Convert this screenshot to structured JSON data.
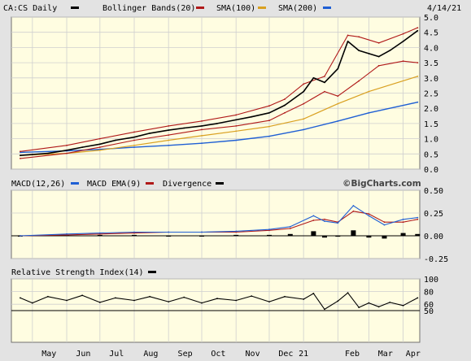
{
  "header": {
    "legend": [
      {
        "label": "CA:CS Daily",
        "color": "#000000"
      },
      {
        "label": "Bollinger Bands(20)",
        "color": "#b01919"
      },
      {
        "label": "SMA(100)",
        "color": "#d9a020"
      },
      {
        "label": "SMA(200)",
        "color": "#1f5fd4"
      }
    ],
    "date": "4/14/21"
  },
  "macd_header": {
    "legend": [
      {
        "label": "MACD(12,26)",
        "color": "#1f5fd4"
      },
      {
        "label": "MACD EMA(9)",
        "color": "#b01919"
      },
      {
        "label": "Divergence",
        "color": "#000000"
      }
    ],
    "watermark": "©BigCharts.com"
  },
  "rsi_header": {
    "legend": [
      {
        "label": "Relative Strength Index(14)",
        "color": "#000000"
      }
    ]
  },
  "colors": {
    "panel_bg": "#fffde1",
    "outer_bg": "#e3e3e3",
    "grid": "#cfcfcf",
    "price": "#000000",
    "bollinger": "#b01919",
    "sma100": "#d9a020",
    "sma200": "#1f5fd4",
    "macd": "#1f5fd4",
    "macd_ema": "#b01919"
  },
  "chart_data": [
    {
      "type": "line",
      "title": "CA:CS Daily",
      "ylim": [
        0,
        5
      ],
      "yticks": [
        "0.0",
        "0.5",
        "1.0",
        "1.5",
        "2.0",
        "2.5",
        "3.0",
        "3.5",
        "4.0",
        "4.5",
        "5.0"
      ],
      "series": [
        {
          "name": "CA:CS Daily",
          "x": [
            "2020-04-20",
            "2020-05-01",
            "2020-05-15",
            "2020-06-01",
            "2020-06-15",
            "2020-07-01",
            "2020-07-15",
            "2020-08-01",
            "2020-08-15",
            "2020-09-01",
            "2020-09-15",
            "2020-10-01",
            "2020-10-15",
            "2020-11-01",
            "2020-11-15",
            "2020-12-01",
            "2020-12-15",
            "2021-01-01",
            "2021-01-10",
            "2021-01-20",
            "2021-02-01",
            "2021-02-10",
            "2021-02-20",
            "2021-03-01",
            "2021-03-10",
            "2021-03-20",
            "2021-04-01",
            "2021-04-14"
          ],
          "values": [
            0.45,
            0.48,
            0.52,
            0.62,
            0.72,
            0.82,
            0.95,
            1.05,
            1.18,
            1.28,
            1.35,
            1.42,
            1.5,
            1.62,
            1.72,
            1.85,
            2.1,
            2.55,
            3.0,
            2.85,
            3.3,
            4.2,
            3.9,
            3.8,
            3.7,
            3.9,
            4.2,
            4.55
          ]
        },
        {
          "name": "Bollinger Upper",
          "x": [
            "2020-04-20",
            "2020-06-01",
            "2020-07-01",
            "2020-08-01",
            "2020-09-01",
            "2020-10-01",
            "2020-11-01",
            "2020-12-01",
            "2020-12-15",
            "2021-01-01",
            "2021-01-20",
            "2021-02-10",
            "2021-02-20",
            "2021-03-10",
            "2021-04-01",
            "2021-04-14"
          ],
          "values": [
            0.58,
            0.78,
            1.0,
            1.22,
            1.42,
            1.58,
            1.78,
            2.08,
            2.3,
            2.8,
            3.05,
            4.4,
            4.35,
            4.15,
            4.45,
            4.65
          ]
        },
        {
          "name": "Bollinger Lower",
          "x": [
            "2020-04-20",
            "2020-06-01",
            "2020-07-01",
            "2020-08-01",
            "2020-09-01",
            "2020-10-01",
            "2020-11-01",
            "2020-12-01",
            "2020-12-15",
            "2021-01-01",
            "2021-01-20",
            "2021-02-01",
            "2021-02-20",
            "2021-03-10",
            "2021-04-01",
            "2021-04-14"
          ],
          "values": [
            0.35,
            0.52,
            0.72,
            0.95,
            1.12,
            1.3,
            1.42,
            1.6,
            1.85,
            2.15,
            2.55,
            2.4,
            2.9,
            3.4,
            3.55,
            3.5
          ]
        },
        {
          "name": "SMA(100)",
          "x": [
            "2020-04-20",
            "2020-06-01",
            "2020-07-01",
            "2020-08-01",
            "2020-09-01",
            "2020-10-01",
            "2020-11-01",
            "2020-12-01",
            "2021-01-01",
            "2021-02-01",
            "2021-03-01",
            "2021-04-14"
          ],
          "values": [
            0.45,
            0.52,
            0.62,
            0.78,
            0.95,
            1.1,
            1.25,
            1.4,
            1.65,
            2.15,
            2.55,
            3.05
          ]
        },
        {
          "name": "SMA(200)",
          "x": [
            "2020-04-20",
            "2020-06-01",
            "2020-07-01",
            "2020-08-01",
            "2020-09-01",
            "2020-10-01",
            "2020-11-01",
            "2020-12-01",
            "2021-01-01",
            "2021-02-01",
            "2021-03-01",
            "2021-04-14"
          ],
          "values": [
            0.55,
            0.6,
            0.65,
            0.72,
            0.78,
            0.85,
            0.95,
            1.08,
            1.3,
            1.58,
            1.85,
            2.2
          ]
        }
      ]
    },
    {
      "type": "line",
      "title": "MACD(12,26)",
      "ylim": [
        -0.25,
        0.5
      ],
      "yticks": [
        "0.50",
        "0.25",
        "0.00",
        "-0.25"
      ],
      "series": [
        {
          "name": "MACD(12,26)",
          "x": [
            "2020-04-20",
            "2020-06-01",
            "2020-07-01",
            "2020-08-01",
            "2020-09-01",
            "2020-10-01",
            "2020-11-01",
            "2020-12-01",
            "2020-12-20",
            "2021-01-10",
            "2021-01-20",
            "2021-02-01",
            "2021-02-15",
            "2021-03-01",
            "2021-03-15",
            "2021-04-01",
            "2021-04-14"
          ],
          "values": [
            0.0,
            0.02,
            0.03,
            0.04,
            0.04,
            0.04,
            0.05,
            0.07,
            0.1,
            0.22,
            0.16,
            0.14,
            0.33,
            0.22,
            0.12,
            0.18,
            0.2
          ]
        },
        {
          "name": "MACD EMA(9)",
          "x": [
            "2020-04-20",
            "2020-06-01",
            "2020-07-01",
            "2020-08-01",
            "2020-09-01",
            "2020-10-01",
            "2020-11-01",
            "2020-12-01",
            "2020-12-20",
            "2021-01-10",
            "2021-01-20",
            "2021-02-01",
            "2021-02-15",
            "2021-03-01",
            "2021-03-15",
            "2021-04-01",
            "2021-04-14"
          ],
          "values": [
            0.0,
            0.01,
            0.02,
            0.03,
            0.04,
            0.04,
            0.04,
            0.06,
            0.08,
            0.17,
            0.18,
            0.15,
            0.27,
            0.24,
            0.15,
            0.15,
            0.18
          ]
        },
        {
          "name": "Divergence",
          "x": [
            "2020-04-20",
            "2020-06-01",
            "2020-07-01",
            "2020-08-01",
            "2020-09-01",
            "2020-10-01",
            "2020-11-01",
            "2020-12-01",
            "2020-12-20",
            "2021-01-10",
            "2021-01-20",
            "2021-02-01",
            "2021-02-15",
            "2021-03-01",
            "2021-03-15",
            "2021-04-01",
            "2021-04-14"
          ],
          "values": [
            0.0,
            0.01,
            0.01,
            0.01,
            0.0,
            0.0,
            0.01,
            0.01,
            0.02,
            0.05,
            -0.02,
            -0.01,
            0.06,
            -0.02,
            -0.03,
            0.03,
            0.02
          ]
        }
      ]
    },
    {
      "type": "line",
      "title": "Relative Strength Index(14)",
      "ylim": [
        0,
        100
      ],
      "yticks": [
        "100",
        "80",
        "60",
        "50"
      ],
      "series": [
        {
          "name": "Relative Strength Index(14)",
          "x": [
            "2020-04-20",
            "2020-05-01",
            "2020-05-15",
            "2020-06-01",
            "2020-06-15",
            "2020-07-01",
            "2020-07-15",
            "2020-08-01",
            "2020-08-15",
            "2020-09-01",
            "2020-09-15",
            "2020-10-01",
            "2020-10-15",
            "2020-11-01",
            "2020-11-15",
            "2020-12-01",
            "2020-12-15",
            "2021-01-01",
            "2021-01-10",
            "2021-01-20",
            "2021-02-01",
            "2021-02-10",
            "2021-02-20",
            "2021-03-01",
            "2021-03-10",
            "2021-03-20",
            "2021-04-01",
            "2021-04-14"
          ],
          "values": [
            70,
            62,
            72,
            66,
            74,
            63,
            70,
            66,
            72,
            64,
            71,
            62,
            69,
            66,
            73,
            64,
            72,
            68,
            77,
            52,
            65,
            78,
            55,
            62,
            56,
            63,
            58,
            70
          ]
        }
      ]
    }
  ],
  "x_axis": {
    "ticks": [
      "May",
      "Jun",
      "Jul",
      "Aug",
      "Sep",
      "Oct",
      "Nov",
      "Dec",
      "21",
      "Feb",
      "Mar",
      "Apr"
    ]
  }
}
